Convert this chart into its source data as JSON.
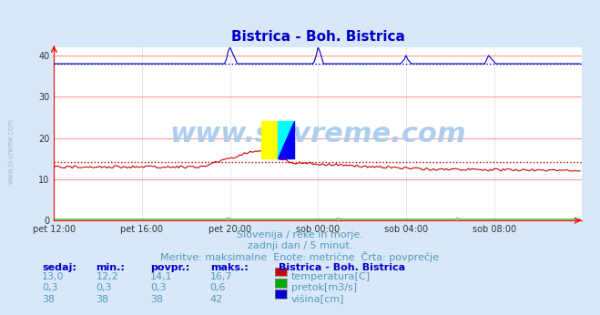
{
  "title": "Bistrica - Boh. Bistrica",
  "title_color": "#0000cc",
  "bg_color": "#d8e8f8",
  "plot_bg_color": "#ffffff",
  "grid_color_h": "#ff9999",
  "grid_color_v": "#dddddd",
  "xlim": [
    0,
    288
  ],
  "ylim": [
    0,
    42
  ],
  "yticks": [
    0,
    10,
    20,
    30,
    40
  ],
  "xtick_labels": [
    "pet 12:00",
    "pet 16:00",
    "pet 20:00",
    "sob 00:00",
    "sob 04:00",
    "sob 08:00"
  ],
  "xtick_positions": [
    0,
    48,
    96,
    144,
    192,
    240
  ],
  "temp_color": "#cc0000",
  "pretok_color": "#00aa00",
  "visina_color": "#0000cc",
  "watermark": "www.si-vreme.com",
  "watermark_color": "#aaccee",
  "subtitle1": "Slovenija / reke in morje.",
  "subtitle2": "zadnji dan / 5 minut.",
  "subtitle3": "Meritve: maksimalne  Enote: metrične  Črta: povprečje",
  "subtitle_color": "#5599bb",
  "legend_title": "Bistrica - Boh. Bistrica",
  "legend_color": "#0000cc",
  "table_headers": [
    "sedaj:",
    "min.:",
    "povpr.:",
    "maks.:"
  ],
  "table_data": [
    [
      "13,0",
      "12,2",
      "14,1",
      "16,7"
    ],
    [
      "0,3",
      "0,3",
      "0,3",
      "0,6"
    ],
    [
      "38",
      "38",
      "38",
      "42"
    ]
  ],
  "legend_items": [
    "temperatura[C]",
    "pretok[m3/s]",
    "višina[cm]"
  ],
  "legend_item_colors": [
    "#cc0000",
    "#00aa00",
    "#0000cc"
  ],
  "temp_avg_value": 14.1,
  "visina_avg_value": 38.0
}
